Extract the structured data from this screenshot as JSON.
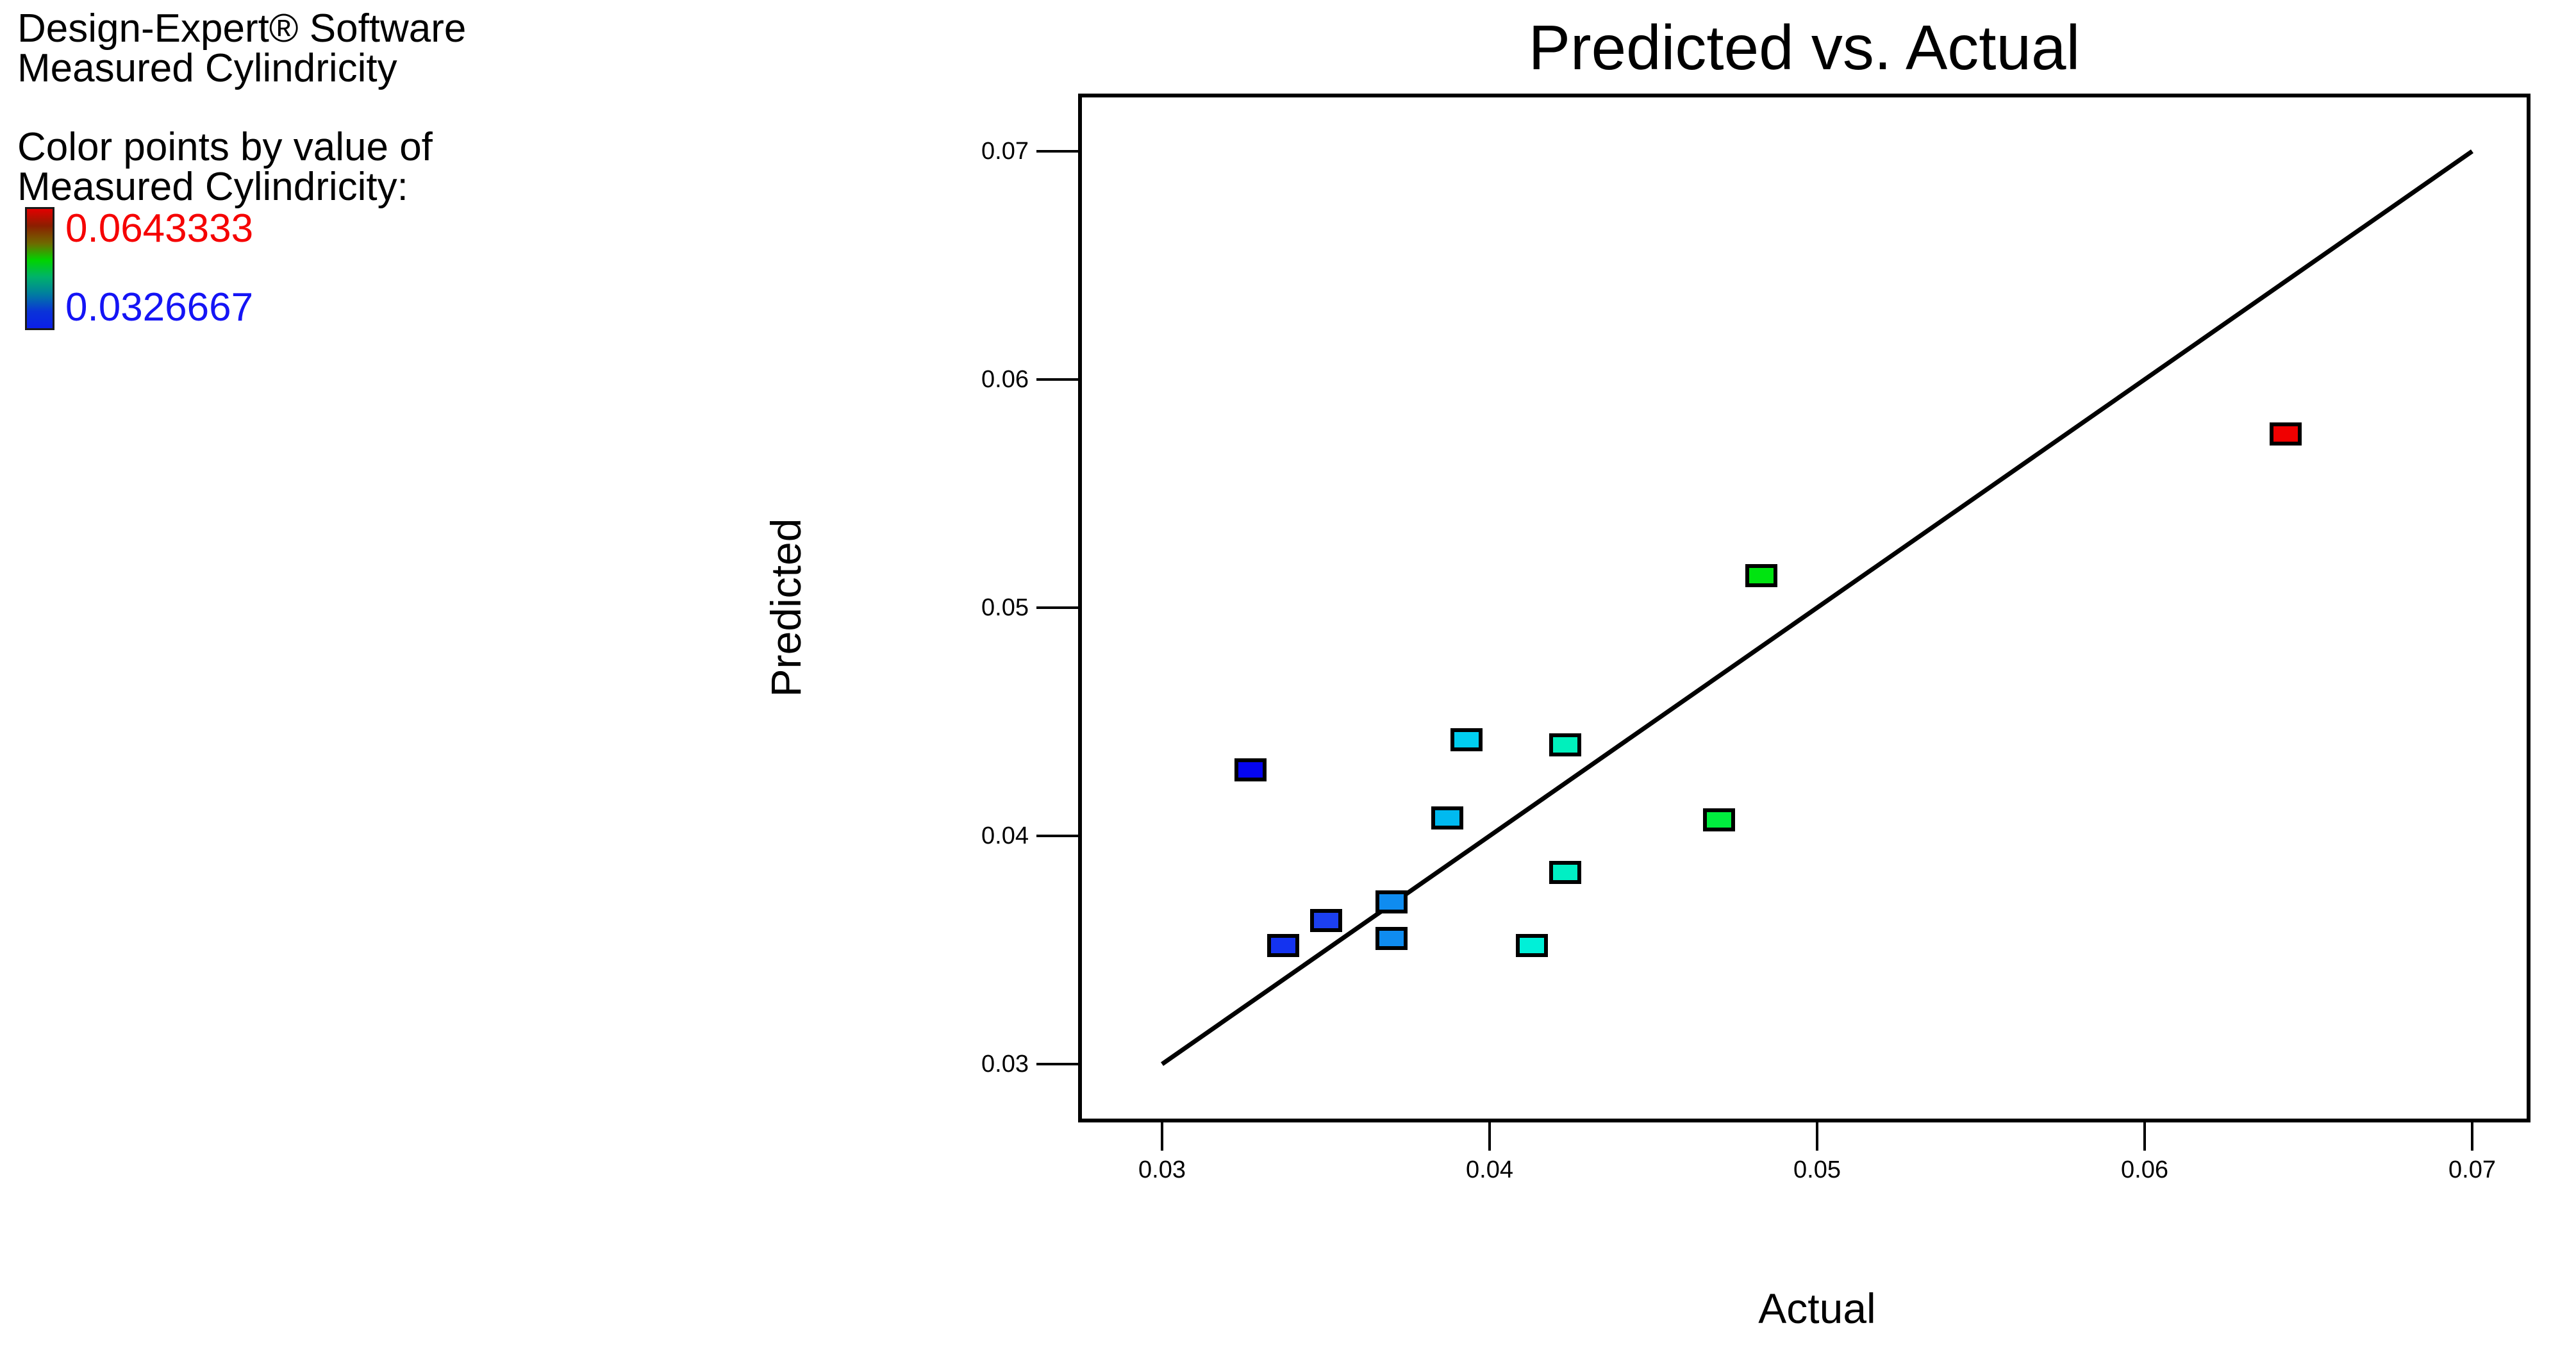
{
  "panel": {
    "software_line1": "Design-Expert® Software",
    "software_line2": "Measured Cylindricity",
    "color_note_line1": "Color points by value of",
    "color_note_line2": "Measured Cylindricity:",
    "legend_max": "0.0643333",
    "legend_min": "0.0326667",
    "legend_max_color": "#f50000",
    "legend_min_color": "#1414f5",
    "legend_gradient_stops": [
      "#e20000",
      "#8c1e00",
      "#6f6a00",
      "#00d400",
      "#00b26a",
      "#007f9e",
      "#0a33d8",
      "#0b1fe8"
    ]
  },
  "chart_data": {
    "type": "scatter",
    "title": "Predicted vs. Actual",
    "xlabel": "Actual",
    "ylabel": "Predicted",
    "xlim": [
      0.0274,
      0.0718
    ],
    "ylim": [
      0.0274,
      0.0725
    ],
    "grid": false,
    "x_ticks": [
      "0.03",
      "0.04",
      "0.05",
      "0.06",
      "0.07"
    ],
    "x_tick_values": [
      0.03,
      0.04,
      0.05,
      0.06,
      0.07
    ],
    "y_ticks": [
      "0.07",
      "0.06",
      "0.05",
      "0.04",
      "0.03"
    ],
    "y_tick_values": [
      0.07,
      0.06,
      0.05,
      0.04,
      0.03
    ],
    "identity_line": {
      "x1": 0.03,
      "y1": 0.03,
      "x2": 0.07,
      "y2": 0.07
    },
    "series_note": "points colored by Measured Cylindricity, blue=0.0326667 to red=0.0643333",
    "points": [
      {
        "actual": 0.0327,
        "predicted": 0.0429,
        "color": "#0505f0"
      },
      {
        "actual": 0.0337,
        "predicted": 0.0352,
        "color": "#1433f0"
      },
      {
        "actual": 0.035,
        "predicted": 0.0363,
        "color": "#1c40f0"
      },
      {
        "actual": 0.037,
        "predicted": 0.0371,
        "color": "#0f8cf0"
      },
      {
        "actual": 0.037,
        "predicted": 0.0355,
        "color": "#0f8cf0"
      },
      {
        "actual": 0.0387,
        "predicted": 0.0408,
        "color": "#00baf0"
      },
      {
        "actual": 0.0393,
        "predicted": 0.0442,
        "color": "#00cef0"
      },
      {
        "actual": 0.0413,
        "predicted": 0.0352,
        "color": "#00f0d8"
      },
      {
        "actual": 0.0423,
        "predicted": 0.044,
        "color": "#00f0bc"
      },
      {
        "actual": 0.0423,
        "predicted": 0.0384,
        "color": "#00efc4"
      },
      {
        "actual": 0.047,
        "predicted": 0.0407,
        "color": "#00ee3e"
      },
      {
        "actual": 0.0483,
        "predicted": 0.0514,
        "color": "#00e410"
      },
      {
        "actual": 0.0643,
        "predicted": 0.0576,
        "color": "#f00000"
      }
    ]
  }
}
